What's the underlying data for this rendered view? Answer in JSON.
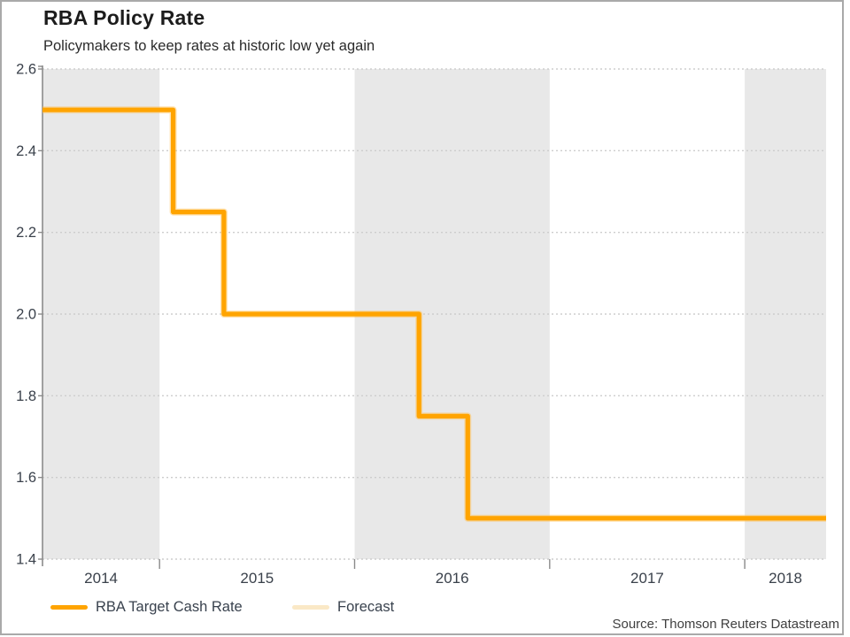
{
  "header": {
    "title": "RBA Policy Rate",
    "subtitle": "Policymakers to keep rates at historic low yet again"
  },
  "legend": {
    "items": [
      {
        "label": "RBA Target Cash Rate",
        "color": "#FFA400"
      },
      {
        "label": "Forecast",
        "color": "#FAE8C6"
      }
    ]
  },
  "source": "Source: Thomson Reuters Datastream",
  "chart_data": {
    "type": "line",
    "subtype": "step-after",
    "title": "RBA Policy Rate",
    "subtitle": "Policymakers to keep rates at historic low yet again",
    "xlabel": "",
    "ylabel": "",
    "xlim": [
      2014.4,
      2018.417
    ],
    "ylim": [
      1.4,
      2.6
    ],
    "y_tick_labels": [
      "2.6",
      "2.4",
      "2.2",
      "2.0",
      "1.8",
      "1.6",
      "1.4"
    ],
    "x_tick_labels": [
      "2014",
      "2015",
      "2016",
      "2017",
      "2018"
    ],
    "x_first_year": 2014,
    "shaded_years": [
      2014,
      2016,
      2018
    ],
    "band_color": "#e8e8e8",
    "gridline_color": "#cdcdcd",
    "axis_color": "#8a8a8a",
    "tick_label_color": "#3a414b",
    "grid": "horizontal-dotted",
    "legend_position": "bottom-left",
    "series": [
      {
        "name": "RBA Target Cash Rate",
        "color": "#FFA400",
        "halo_color": "#FFC257",
        "step": true,
        "points": [
          [
            2014.4,
            2.5
          ],
          [
            2015.07,
            2.25
          ],
          [
            2015.33,
            2.0
          ],
          [
            2016.33,
            1.75
          ],
          [
            2016.58,
            1.5
          ],
          [
            2018.417,
            1.5
          ]
        ]
      },
      {
        "name": "Forecast",
        "color": "#FAE8C6",
        "step": true,
        "points": [
          [
            2016.58,
            1.5
          ],
          [
            2018.417,
            1.5
          ]
        ]
      }
    ]
  }
}
